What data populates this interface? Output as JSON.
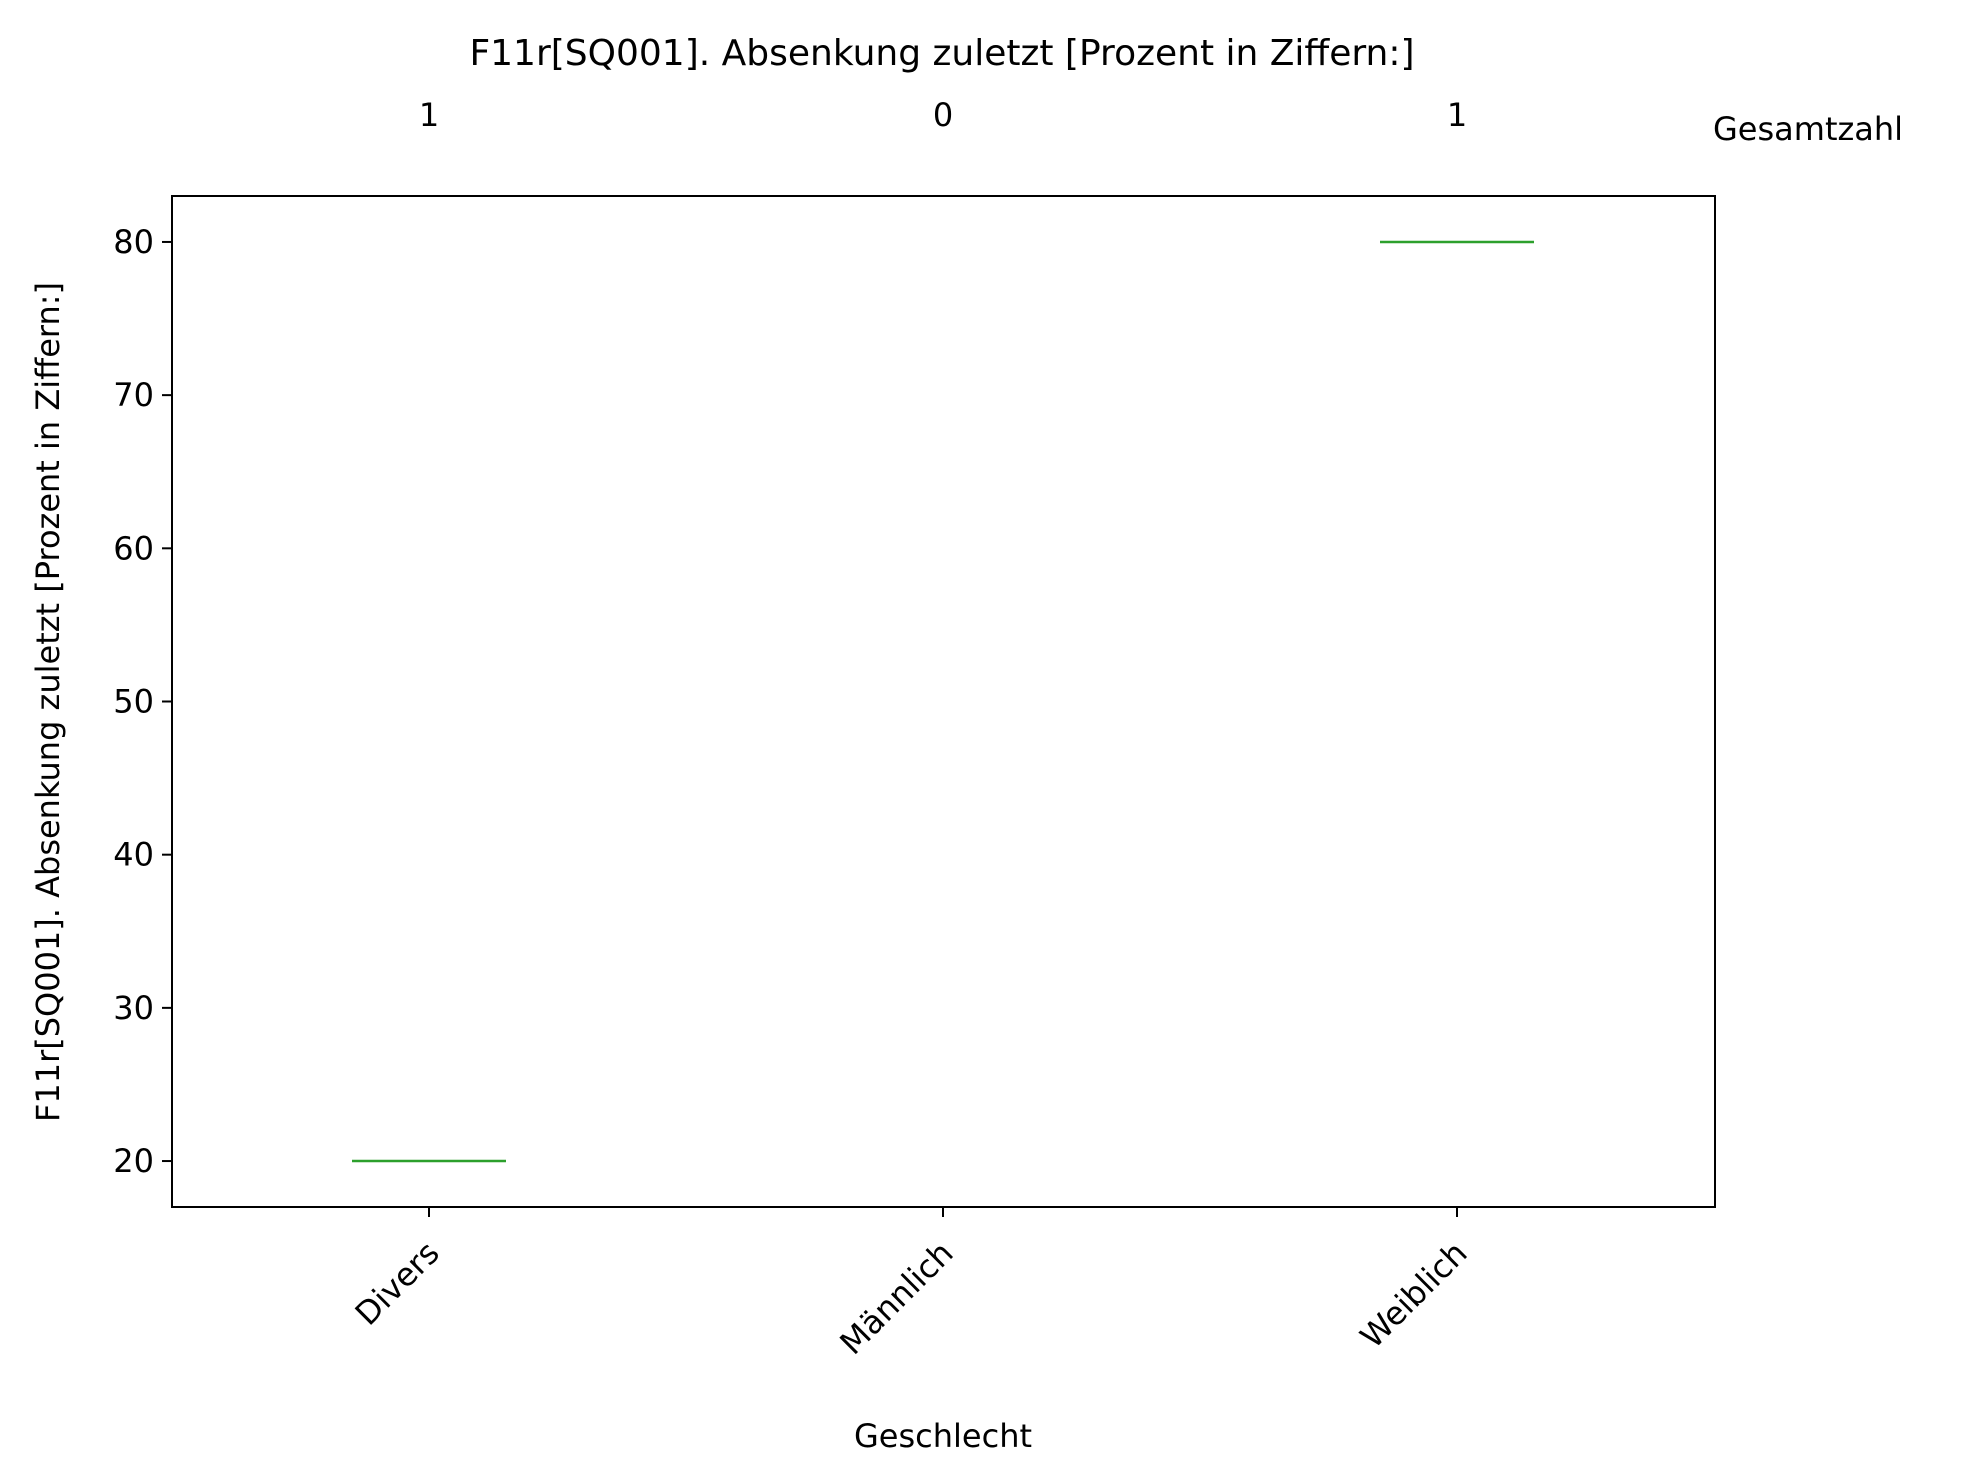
{
  "chart_data": {
    "type": "box",
    "title": "F11r[SQ001]. Absenkung zuletzt [Prozent in Ziffern:]",
    "xlabel": "Geschlecht",
    "ylabel": "F11r[SQ001]. Absenkung zuletzt [Prozent in Ziffern:]",
    "categories": [
      "Divers",
      "Männlich",
      "Weiblich"
    ],
    "counts": [
      1,
      0,
      1
    ],
    "counts_label": "Gesamtzahl",
    "values": [
      20,
      null,
      80
    ],
    "ylim": [
      17,
      83
    ],
    "yticks": [
      20,
      30,
      40,
      50,
      60,
      70,
      80
    ],
    "grid": false,
    "colors": {
      "median": "#2ca02c",
      "axes": "#000000"
    }
  }
}
